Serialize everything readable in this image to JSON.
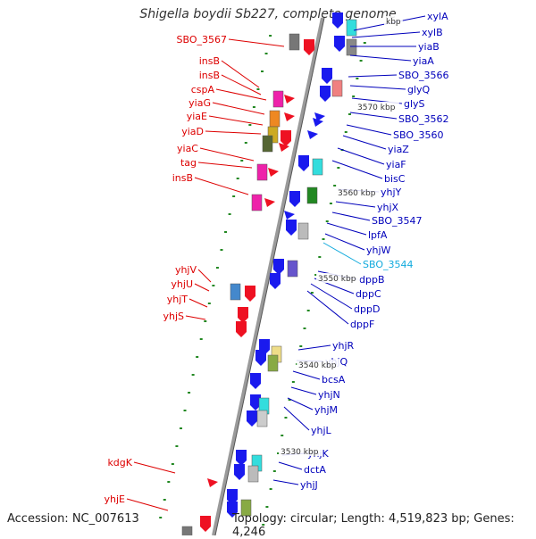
{
  "title": "Shigella boydii Sb227, complete genome",
  "footer": {
    "accession": "Accession: NC_007613",
    "topology": "Topology: circular; Length: 4,519,823 bp; Genes: 4,246"
  },
  "colors": {
    "left_label": "#dd0000",
    "right_label": "#0000bb",
    "highlight_label": "#11aadd",
    "backbone": "#888888",
    "green_dash": "#228822"
  },
  "kbp_markers": [
    {
      "label": "3570 kbp"
    },
    {
      "label": "3560 kbp"
    },
    {
      "label": "3550 kbp"
    },
    {
      "label": "3540 kbp"
    },
    {
      "label": "3530 kbp"
    },
    {
      "label": "kbp"
    }
  ],
  "left_genes": [
    {
      "label": "SBO_3567"
    },
    {
      "label": "insB"
    },
    {
      "label": "insB"
    },
    {
      "label": "cspA"
    },
    {
      "label": "yiaG"
    },
    {
      "label": "yiaE"
    },
    {
      "label": "yiaD"
    },
    {
      "label": "yiaC"
    },
    {
      "label": "tag"
    },
    {
      "label": "insB"
    },
    {
      "label": "yhjV"
    },
    {
      "label": "yhjU"
    },
    {
      "label": "yhjT"
    },
    {
      "label": "yhjS"
    },
    {
      "label": "kdgK"
    },
    {
      "label": "yhjE"
    }
  ],
  "right_genes": [
    {
      "label": "xylA"
    },
    {
      "label": "xylB"
    },
    {
      "label": "yiaB"
    },
    {
      "label": "yiaA"
    },
    {
      "label": "SBO_3566"
    },
    {
      "label": "glyQ"
    },
    {
      "label": "glyS"
    },
    {
      "label": "SBO_3562"
    },
    {
      "label": "SBO_3560"
    },
    {
      "label": "yiaZ"
    },
    {
      "label": "yiaF"
    },
    {
      "label": "bisC"
    },
    {
      "label": "yhjY"
    },
    {
      "label": "yhjX"
    },
    {
      "label": "SBO_3547"
    },
    {
      "label": "lpfA"
    },
    {
      "label": "yhjW"
    },
    {
      "label": "SBO_3544",
      "highlight": true
    },
    {
      "label": "dppB"
    },
    {
      "label": "dppC"
    },
    {
      "label": "dppD"
    },
    {
      "label": "dppF"
    },
    {
      "label": "yhjR"
    },
    {
      "label": "yhjQ"
    },
    {
      "label": "bcsA"
    },
    {
      "label": "yhjN"
    },
    {
      "label": "yhjM"
    },
    {
      "label": "yhjL"
    },
    {
      "label": "yhjK"
    },
    {
      "label": "dctA"
    },
    {
      "label": "yhjJ"
    }
  ]
}
